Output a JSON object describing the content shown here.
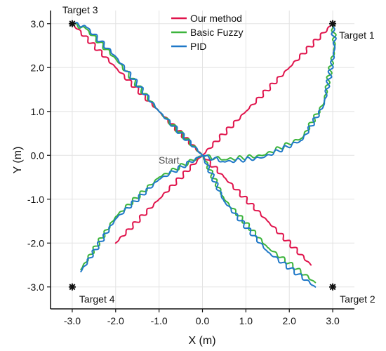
{
  "chart_data": {
    "type": "line",
    "title": "",
    "xlabel": "X (m)",
    "ylabel": "Y (m)",
    "xlim": [
      -3.5,
      3.5
    ],
    "ylim": [
      -3.5,
      3.3
    ],
    "xticks": [
      -3.0,
      -2.0,
      -1.0,
      0.0,
      1.0,
      2.0,
      3.0
    ],
    "xtick_labels": [
      "-3.0",
      "-2.0",
      "-1.0",
      "0.0",
      "1.0",
      "2.0",
      "3.0"
    ],
    "yticks": [
      -3.0,
      -2.0,
      -1.0,
      0.0,
      1.0,
      2.0,
      3.0
    ],
    "ytick_labels": [
      "-3.0",
      "-2.0",
      "-1.0",
      "0.0",
      "1.0",
      "2.0",
      "3.0"
    ],
    "grid": true,
    "legend_position": "top-center",
    "series": [
      {
        "name": "Our method",
        "color": "#e0144c",
        "x": [
          0.0,
          1.0,
          2.0,
          3.0,
          2.5,
          1.5,
          0.5,
          0.0,
          -1.0,
          -2.0,
          -3.0,
          -2.0,
          -1.0,
          0.0
        ],
        "y": [
          0.0,
          1.0,
          2.0,
          3.0,
          -2.5,
          -1.5,
          -0.5,
          0.0,
          1.0,
          2.0,
          3.0,
          -2.0,
          -1.0,
          0.0
        ]
      },
      {
        "name": "Basic Fuzzy",
        "color": "#3cb43c",
        "x": [
          0.0,
          0.5,
          1.4,
          2.3,
          2.8,
          3.05,
          3.0,
          2.6,
          1.5,
          0.5,
          0.0,
          -1.0,
          -2.0,
          -2.7,
          -3.0,
          -2.8,
          -2.0,
          -1.0,
          0.0
        ],
        "y": [
          0.0,
          -0.1,
          0.0,
          0.4,
          1.2,
          2.5,
          3.0,
          -2.9,
          -2.1,
          -1.0,
          0.0,
          1.0,
          2.2,
          2.9,
          3.0,
          -2.6,
          -1.4,
          -0.5,
          0.0
        ]
      },
      {
        "name": "PID",
        "color": "#1f78c8",
        "x": [
          0.0,
          0.5,
          1.4,
          2.3,
          2.8,
          3.05,
          3.0,
          2.6,
          1.5,
          0.5,
          0.0,
          -1.0,
          -2.0,
          -2.7,
          -3.0,
          -2.8,
          -2.0,
          -1.0,
          0.0
        ],
        "y": [
          0.0,
          -0.15,
          -0.05,
          0.35,
          1.15,
          2.45,
          3.0,
          -3.0,
          -2.2,
          -1.05,
          0.0,
          1.0,
          2.25,
          2.95,
          3.0,
          -2.65,
          -1.45,
          -0.55,
          0.0
        ]
      }
    ],
    "targets": [
      {
        "label": "Target 1",
        "x": 3.0,
        "y": 3.0
      },
      {
        "label": "Target 2",
        "x": 3.0,
        "y": -3.0
      },
      {
        "label": "Target 3",
        "x": -3.0,
        "y": 3.0
      },
      {
        "label": "Target 4",
        "x": -3.0,
        "y": -3.0
      }
    ],
    "start": {
      "label": "Start",
      "x": 0.0,
      "y": 0.0
    }
  }
}
